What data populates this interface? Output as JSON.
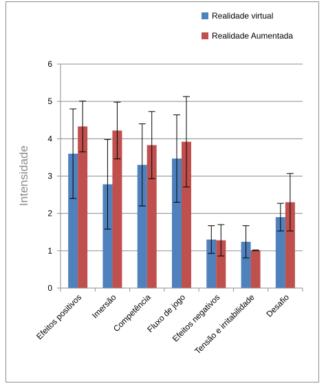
{
  "chart_data": {
    "type": "bar",
    "ylabel": "Intensidade",
    "xlabel": "",
    "ylim": [
      0,
      6
    ],
    "yticks": [
      "0",
      "1",
      "2",
      "3",
      "4",
      "5",
      "6"
    ],
    "grid": true,
    "legend_position": "top-right",
    "categories": [
      "Efeitos positivos",
      "Imersão",
      "Competência",
      "Fluxo de jogo",
      "Efeitos negativos",
      "Tensão e irritabilidade",
      "Desafio"
    ],
    "series": [
      {
        "name": "Realidade virtual",
        "color": "#4f81bd",
        "values": [
          3.6,
          2.78,
          3.3,
          3.47,
          1.3,
          1.24,
          1.9
        ],
        "error": [
          1.2,
          1.2,
          1.1,
          1.17,
          0.37,
          0.43,
          0.37
        ]
      },
      {
        "name": "Realidade Aumentada",
        "color": "#c0504d",
        "values": [
          4.33,
          4.22,
          3.83,
          3.92,
          1.28,
          1.01,
          2.3
        ],
        "error": [
          0.68,
          0.76,
          0.9,
          1.21,
          0.42,
          0.01,
          0.77
        ]
      }
    ]
  }
}
